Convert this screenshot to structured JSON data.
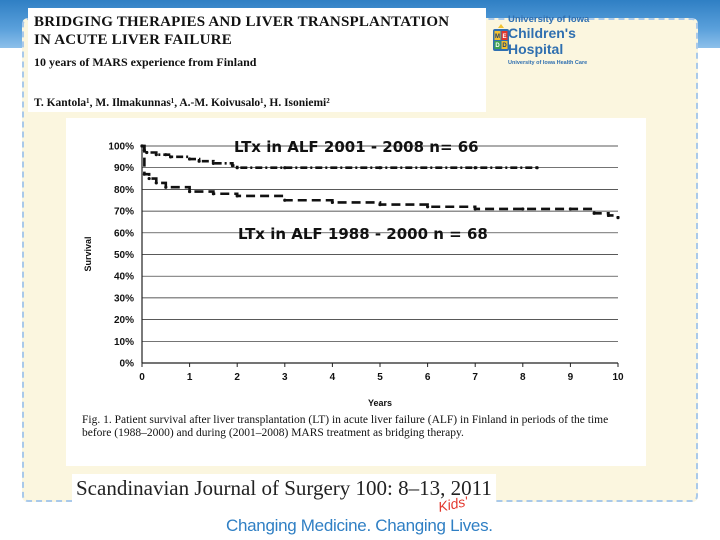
{
  "header": {
    "title_line1": "BRIDGING THERAPIES AND LIVER TRANSPLANTATION",
    "title_line2": "IN ACUTE LIVER FAILURE",
    "subtitle": "10 years of MARS experience from Finland",
    "authors": "T. Kantola¹, M. Ilmakunnas¹, A.-M. Koivusalo¹, H. Isoniemi²"
  },
  "logo": {
    "university": "University of Iowa",
    "name_line1": "Children's",
    "name_line2": "Hospital",
    "sub": "University of Iowa Health Care",
    "crest_letters": [
      "M",
      "E",
      "D",
      "D"
    ]
  },
  "caption": "Fig. 1. Patient survival after liver transplantation (LT) in acute liver failure (ALF) in Finland in periods of the time before (1988–2000) and during (2001–2008) MARS treatment as bridging therapy.",
  "journal": "Scandinavian Journal of Surgery 100: 8–13, 2011",
  "footer": {
    "tagline": "Changing Medicine. Changing    Lives.",
    "kids": "Kids'"
  },
  "colors": {
    "brand_blue": "#2f7fc4",
    "kids_red": "#e2362c",
    "slide_bg": "#fbf6df"
  },
  "chart_data": {
    "type": "line",
    "xlabel": "Years",
    "ylabel": "Survival",
    "xlim": [
      0,
      10
    ],
    "ylim": [
      0,
      100
    ],
    "x_ticks": [
      "0",
      "1",
      "2",
      "3",
      "4",
      "5",
      "6",
      "7",
      "8",
      "9",
      "10"
    ],
    "y_ticks": [
      "0%",
      "10%",
      "20%",
      "30%",
      "40%",
      "50%",
      "60%",
      "70%",
      "80%",
      "90%",
      "100%"
    ],
    "grid": "horizontal",
    "series": [
      {
        "name": "LTx in ALF 2001 - 2008  n= 66",
        "style": "dash-dot",
        "x": [
          0,
          0.05,
          0.1,
          0.3,
          0.5,
          0.6,
          1.0,
          1.2,
          1.5,
          1.9,
          2.0,
          3.0,
          5.0,
          7.0,
          8.3
        ],
        "y": [
          100,
          98,
          97,
          96,
          96,
          95,
          94,
          93,
          92,
          91,
          90,
          90,
          90,
          90,
          90
        ]
      },
      {
        "name": "LTx in ALF 1988 - 2000 n = 68",
        "style": "dashed",
        "x": [
          0,
          0.05,
          0.15,
          0.3,
          0.5,
          1.0,
          1.5,
          2.0,
          3.0,
          4.0,
          5.0,
          6.0,
          7.0,
          8.0,
          9.0,
          9.5,
          9.8,
          10.0
        ],
        "y": [
          100,
          87,
          85,
          83,
          81,
          79,
          78,
          77,
          75,
          74,
          73,
          72,
          71,
          71,
          71,
          69,
          68,
          67
        ]
      }
    ]
  }
}
